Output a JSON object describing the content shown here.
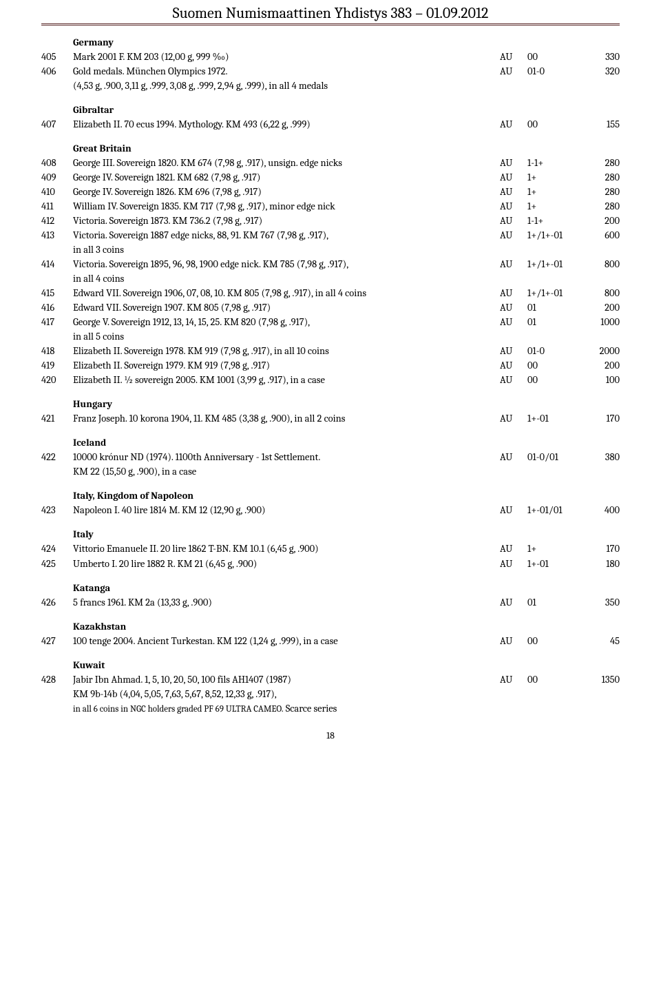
{
  "header": "Suomen Numismaattinen Yhdistys  383 – 01.09.2012",
  "pagenum": "18",
  "sections": [
    {
      "title": "Germany",
      "rows": [
        {
          "lot": "405",
          "desc": "Mark 2001 F. KM 203 (12,00 g, 999 ‰)",
          "mat": "AU",
          "grade": "00",
          "price": "330"
        },
        {
          "lot": "406",
          "desc": "Gold medals. München Olympics 1972.",
          "mat": "AU",
          "grade": "01-0",
          "price": "320"
        },
        {
          "sub": "(4,53 g, .900, 3,11 g, .999, 3,08 g, .999, 2,94 g, .999),  in all 4 medals"
        }
      ]
    },
    {
      "title": "Gibraltar",
      "rows": [
        {
          "lot": "407",
          "desc": "Elizabeth II. 70 ecus 1994. Mythology. KM 493 (6,22 g, .999)",
          "mat": "AU",
          "grade": "00",
          "price": "155"
        }
      ]
    },
    {
      "title": "Great Britain",
      "rows": [
        {
          "lot": "408",
          "desc": "George III. Sovereign 1820. KM 674 (7,98 g, .917), unsign. edge nicks",
          "mat": "AU",
          "grade": "1-1+",
          "price": "280"
        },
        {
          "lot": "409",
          "desc": "George IV. Sovereign 1821. KM 682 (7,98 g, .917)",
          "mat": "AU",
          "grade": "1+",
          "price": "280"
        },
        {
          "lot": "410",
          "desc": "George IV. Sovereign 1826. KM 696 (7,98 g, .917)",
          "mat": "AU",
          "grade": "1+",
          "price": "280"
        },
        {
          "lot": "411",
          "desc": "William IV. Sovereign 1835. KM 717 (7,98 g, .917), minor edge nick",
          "mat": "AU",
          "grade": "1+",
          "price": "280"
        },
        {
          "lot": "412",
          "desc": "Victoria. Sovereign 1873. KM 736.2 (7,98 g, .917)",
          "mat": "AU",
          "grade": "1-1+",
          "price": "200"
        },
        {
          "lot": "413",
          "desc": "Victoria. Sovereign 1887 edge nicks, 88, 91. KM 767 (7,98 g, .917),",
          "mat": "AU",
          "grade": "1+/1+-01",
          "price": "600"
        },
        {
          "sub": "in all 3 coins"
        },
        {
          "lot": "414",
          "desc": "Victoria. Sovereign 1895, 96, 98, 1900 edge nick. KM 785 (7,98 g, .917),",
          "mat": "AU",
          "grade": "1+/1+-01",
          "price": "800"
        },
        {
          "sub": "in all 4 coins"
        },
        {
          "lot": "415",
          "desc": "Edward VII. Sovereign 1906, 07, 08, 10. KM 805 (7,98 g, .917), in all 4 coins",
          "mat": "AU",
          "grade": "1+/1+-01",
          "price": "800"
        },
        {
          "lot": "416",
          "desc": "Edward VII. Sovereign 1907. KM 805 (7,98 g, .917)",
          "mat": "AU",
          "grade": "01",
          "price": "200"
        },
        {
          "lot": "417",
          "desc": "George V. Sovereign 1912, 13, 14, 15, 25. KM 820 (7,98 g, .917),",
          "mat": "AU",
          "grade": "01",
          "price": "1000"
        },
        {
          "sub": "in all 5 coins"
        },
        {
          "lot": "418",
          "desc": "Elizabeth II. Sovereign 1978. KM 919 (7,98 g, .917), in all 10 coins",
          "mat": "AU",
          "grade": "01-0",
          "price": "2000"
        },
        {
          "lot": "419",
          "desc": "Elizabeth II. Sovereign 1979. KM 919 (7,98 g, .917)",
          "mat": "AU",
          "grade": "00",
          "price": "200"
        },
        {
          "lot": "420",
          "desc": "Elizabeth II. ½ sovereign 2005. KM 1001 (3,99 g, .917), in a case",
          "mat": "AU",
          "grade": "00",
          "price": "100"
        }
      ]
    },
    {
      "title": "Hungary",
      "rows": [
        {
          "lot": "421",
          "desc": "Franz Joseph. 10 korona 1904, 11. KM 485 (3,38 g, .900), in all 2 coins",
          "mat": "AU",
          "grade": "1+-01",
          "price": "170"
        }
      ]
    },
    {
      "title": "Iceland",
      "rows": [
        {
          "lot": "422",
          "desc": "10000 krónur ND (1974). 1100th Anniversary - 1st Settlement.",
          "mat": "AU",
          "grade": "01-0/01",
          "price": "380"
        },
        {
          "sub": "KM 22 (15,50 g, .900), in a case"
        }
      ]
    },
    {
      "title": "Italy, Kingdom of Napoleon",
      "rows": [
        {
          "lot": "423",
          "desc": "Napoleon I. 40 lire 1814 M. KM 12 (12,90 g, .900)",
          "mat": "AU",
          "grade": "1+-01/01",
          "price": "400"
        }
      ]
    },
    {
      "title": "Italy",
      "rows": [
        {
          "lot": "424",
          "desc": "Vittorio Emanuele II. 20 lire 1862 T-BN. KM 10.1 (6,45 g, .900)",
          "mat": "AU",
          "grade": "1+",
          "price": "170"
        },
        {
          "lot": "425",
          "desc": "Umberto I. 20 lire 1882 R. KM 21 (6,45 g, .900)",
          "mat": "AU",
          "grade": "1+-01",
          "price": "180"
        }
      ]
    },
    {
      "title": "Katanga",
      "rows": [
        {
          "lot": "426",
          "desc": "5 francs 1961. KM 2a (13,33 g, .900)",
          "mat": "AU",
          "grade": "01",
          "price": "350"
        }
      ]
    },
    {
      "title": "Kazakhstan",
      "rows": [
        {
          "lot": "427",
          "desc": "100 tenge 2004. Ancient Turkestan. KM 122 (1,24 g, .999), in a case",
          "mat": "AU",
          "grade": "00",
          "price": "45"
        }
      ]
    },
    {
      "title": "Kuwait",
      "rows": [
        {
          "lot": "428",
          "desc": "Jabir Ibn Ahmad. 1, 5, 10, 20, 50, 100 fils AH1407 (1987)",
          "mat": "AU",
          "grade": "00",
          "price": "1350"
        },
        {
          "sub": "KM 9b-14b (4,04, 5,05, 7,63, 5,67, 8,52, 12,33 g, .917),"
        },
        {
          "sub_html": "<span class=\"small\">in all 6 coins in NGC holders graded PF 69 ULTRA CAMEO.</span> Scarce series"
        }
      ]
    }
  ]
}
